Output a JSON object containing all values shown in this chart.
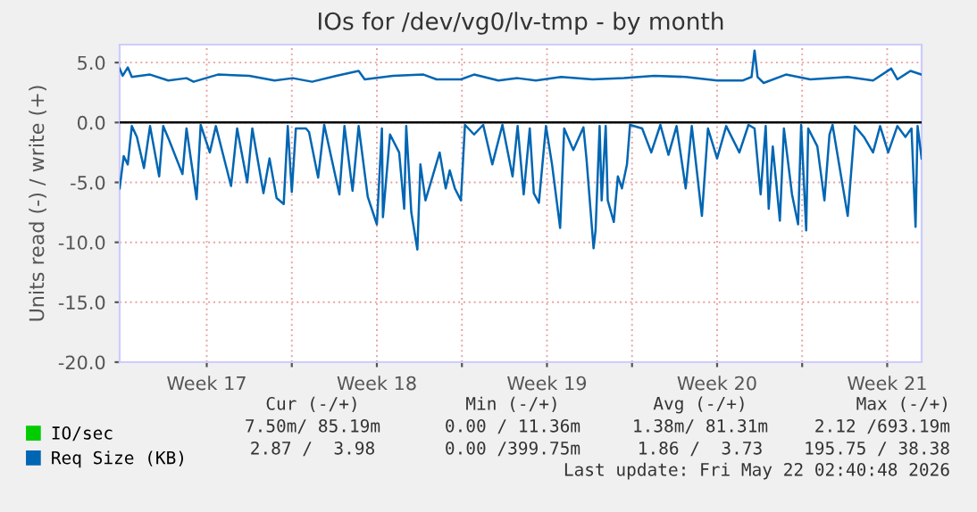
{
  "chart_data": {
    "type": "line",
    "title": "IOs for /dev/vg0/lv-tmp - by month",
    "ylabel": "Units read (-) / write (+)",
    "xlim": [
      "2026-04-19T22:00",
      "2026-05-22T22:00"
    ],
    "xticks": [
      {
        "value": "2026-04-23T12:00",
        "label": "Week 17"
      },
      {
        "value": "2026-04-27T00:00",
        "label": null
      },
      {
        "value": "2026-04-30T12:00",
        "label": "Week 18"
      },
      {
        "value": "2026-05-04T00:00",
        "label": null
      },
      {
        "value": "2026-05-07T12:00",
        "label": "Week 19"
      },
      {
        "value": "2026-05-11T00:00",
        "label": null
      },
      {
        "value": "2026-05-14T12:00",
        "label": "Week 20"
      },
      {
        "value": "2026-05-18T00:00",
        "label": null
      },
      {
        "value": "2026-05-21T12:00",
        "label": "Week 21"
      }
    ],
    "ylim": [
      -20,
      6.5
    ],
    "yticks": [
      {
        "value": -20,
        "label": "-20.0"
      },
      {
        "value": -15,
        "label": "-15.0"
      },
      {
        "value": -10,
        "label": "-10.0"
      },
      {
        "value": -5,
        "label": "-5.0"
      },
      {
        "value": 0,
        "label": "0.0"
      },
      {
        "value": 5,
        "label": "5.0"
      }
    ],
    "grid": true,
    "legend": "bottom left",
    "ref_lines": [
      {
        "axis": "y",
        "value": 0,
        "color": "#000000"
      }
    ],
    "series": [
      {
        "name": "IO/sec",
        "color": "#00cc00"
      },
      {
        "name": "Req Size (KB)",
        "color": "#0066b3",
        "x": [
          "2026-04-19T22:00",
          "2026-04-20T01:00",
          "2026-04-20T06:00",
          "2026-04-20T10:00",
          "2026-04-21T04:00",
          "2026-04-21T22:00",
          "2026-04-22T16:00",
          "2026-04-22T23:00",
          "2026-04-23T23:00",
          "2026-04-25T06:00",
          "2026-04-26T07:00",
          "2026-04-27T01:00",
          "2026-04-27T20:00",
          "2026-04-28T20:00",
          "2026-04-29T18:00",
          "2026-04-30T00:00",
          "2026-05-01T04:00",
          "2026-05-02T10:00",
          "2026-05-02T23:00",
          "2026-05-03T23:00",
          "2026-05-04T12:00",
          "2026-05-05T12:00",
          "2026-05-06T07:00",
          "2026-05-07T01:00",
          "2026-05-08T02:00",
          "2026-05-09T09:00",
          "2026-05-10T16:00",
          "2026-05-11T22:00",
          "2026-05-13T05:00",
          "2026-05-14T12:00",
          "2026-05-15T13:00",
          "2026-05-15T22:00",
          "2026-05-16T01:00",
          "2026-05-16T04:00",
          "2026-05-16T10:00",
          "2026-05-17T08:00",
          "2026-05-18T08:00",
          "2026-05-19T21:00",
          "2026-05-20T22:00",
          "2026-05-21T16:00",
          "2026-05-21T22:00",
          "2026-05-22T11:00",
          "2026-05-22T22:00"
        ],
        "values": [
          4.5,
          3.9,
          4.6,
          3.8,
          4.0,
          3.5,
          3.7,
          3.4,
          4.0,
          3.9,
          3.5,
          3.7,
          3.4,
          3.9,
          4.3,
          3.6,
          3.9,
          4.0,
          3.6,
          3.6,
          4.0,
          3.5,
          3.7,
          3.5,
          3.8,
          3.6,
          3.7,
          3.9,
          3.8,
          3.5,
          3.5,
          3.8,
          6.0,
          3.8,
          3.3,
          4.0,
          3.6,
          3.8,
          3.5,
          4.5,
          3.6,
          4.3,
          4.0
        ]
      },
      {
        "color": "#0066b3",
        "x": [
          "2026-04-19T22:00",
          "2026-04-20T02:00",
          "2026-04-20T06:00",
          "2026-04-20T10:00",
          "2026-04-20T15:00",
          "2026-04-20T22:00",
          "2026-04-21T04:00",
          "2026-04-21T13:00",
          "2026-04-21T17:00",
          "2026-04-21T23:00",
          "2026-04-22T12:00",
          "2026-04-22T16:00",
          "2026-04-23T02:00",
          "2026-04-23T06:00",
          "2026-04-23T15:00",
          "2026-04-23T21:00",
          "2026-04-24T12:00",
          "2026-04-24T18:00",
          "2026-04-25T04:00",
          "2026-04-25T09:00",
          "2026-04-25T20:00",
          "2026-04-26T02:00",
          "2026-04-26T09:00",
          "2026-04-26T16:00",
          "2026-04-26T20:00",
          "2026-04-27T00:00",
          "2026-04-27T04:00",
          "2026-04-27T14:00",
          "2026-04-27T17:00",
          "2026-04-28T02:00",
          "2026-04-28T08:00",
          "2026-04-28T23:00",
          "2026-04-29T04:00",
          "2026-04-29T12:00",
          "2026-04-29T18:00",
          "2026-04-30T03:00",
          "2026-04-30T12:00",
          "2026-04-30T17:00",
          "2026-04-30T18:00",
          "2026-05-01T01:00",
          "2026-05-01T10:00",
          "2026-05-01T15:00",
          "2026-05-01T17:00",
          "2026-05-01T22:00",
          "2026-05-02T04:00",
          "2026-05-02T07:00",
          "2026-05-02T12:00",
          "2026-05-02T19:00",
          "2026-05-03T02:00",
          "2026-05-03T08:00",
          "2026-05-03T12:00",
          "2026-05-03T17:00",
          "2026-05-03T23:00",
          "2026-05-04T03:00",
          "2026-05-04T12:00",
          "2026-05-04T21:00",
          "2026-05-05T06:00",
          "2026-05-05T16:00",
          "2026-05-06T02:00",
          "2026-05-06T07:00",
          "2026-05-06T13:00",
          "2026-05-06T19:00",
          "2026-05-06T23:00",
          "2026-05-07T04:00",
          "2026-05-07T11:00",
          "2026-05-07T17:00",
          "2026-05-08T01:00",
          "2026-05-08T05:00",
          "2026-05-08T14:00",
          "2026-05-09T00:00",
          "2026-05-09T03:00",
          "2026-05-09T10:00",
          "2026-05-09T12:00",
          "2026-05-09T16:00",
          "2026-05-09T18:00",
          "2026-05-09T22:00",
          "2026-05-10T00:00",
          "2026-05-10T06:00",
          "2026-05-10T10:00",
          "2026-05-10T14:00",
          "2026-05-10T19:00",
          "2026-05-10T22:00",
          "2026-05-11T10:00",
          "2026-05-11T19:00",
          "2026-05-12T04:00",
          "2026-05-12T12:00",
          "2026-05-12T20:00",
          "2026-05-13T05:00",
          "2026-05-13T11:00",
          "2026-05-13T21:00",
          "2026-05-14T03:00",
          "2026-05-14T12:00",
          "2026-05-14T21:00",
          "2026-05-15T10:00",
          "2026-05-15T19:00",
          "2026-05-16T01:00",
          "2026-05-16T07:00",
          "2026-05-16T12:00",
          "2026-05-16T15:00",
          "2026-05-16T19:00",
          "2026-05-17T02:00",
          "2026-05-17T06:00",
          "2026-05-17T14:00",
          "2026-05-17T20:00",
          "2026-05-17T23:00",
          "2026-05-18T04:00",
          "2026-05-18T06:00",
          "2026-05-18T15:00",
          "2026-05-18T22:00",
          "2026-05-19T03:00",
          "2026-05-19T06:00",
          "2026-05-19T21:00",
          "2026-05-20T04:00",
          "2026-05-20T13:00",
          "2026-05-20T22:00",
          "2026-05-21T05:00",
          "2026-05-21T13:00",
          "2026-05-21T22:00",
          "2026-05-22T06:00",
          "2026-05-22T12:00",
          "2026-05-22T16:00",
          "2026-05-22T18:00",
          "2026-05-22T22:00"
        ],
        "values": [
          -5.5,
          -2.8,
          -3.5,
          -0.3,
          -1.2,
          -3.8,
          -0.3,
          -4.5,
          -0.3,
          -1.5,
          -4.3,
          -0.5,
          -6.4,
          -0.2,
          -2.5,
          -0.3,
          -5.3,
          -0.5,
          -5.0,
          -0.5,
          -5.9,
          -3.0,
          -6.3,
          -6.8,
          -0.3,
          -5.8,
          -0.5,
          -0.5,
          -0.8,
          -4.6,
          -0.2,
          -6.0,
          -0.3,
          -5.7,
          -0.3,
          -6.2,
          -8.5,
          -0.5,
          -7.9,
          -1.0,
          -2.5,
          -7.2,
          -0.3,
          -7.5,
          -10.6,
          -3.5,
          -6.5,
          -4.5,
          -2.5,
          -5.5,
          -4.0,
          -5.5,
          -6.5,
          -0.2,
          -1.0,
          -0.2,
          -3.5,
          -0.2,
          -4.5,
          -0.3,
          -6.0,
          -0.5,
          -5.9,
          -6.7,
          -0.3,
          -3.5,
          -8.8,
          -0.5,
          -2.3,
          -0.4,
          -3.0,
          -10.5,
          -9.0,
          -0.3,
          -6.5,
          -0.3,
          -6.5,
          -8.3,
          -4.5,
          -5.5,
          -3.5,
          -0.2,
          -0.5,
          -2.5,
          -0.2,
          -2.7,
          -0.3,
          -5.5,
          -0.3,
          -7.8,
          -0.5,
          -3.0,
          -0.3,
          -2.5,
          -0.2,
          -0.5,
          -6.0,
          -0.3,
          -7.2,
          -2.0,
          -8.2,
          -0.5,
          -6.0,
          -8.5,
          -0.2,
          -9.0,
          -0.5,
          -2.0,
          -6.5,
          -1.0,
          -0.2,
          -7.8,
          -0.3,
          -1.2,
          -2.5,
          -0.3,
          -2.5,
          -0.3,
          -1.2,
          -0.5,
          -8.7,
          -0.3,
          -3.0
        ]
      }
    ],
    "annotations": [
      "Cur (-/+)",
      "Min (-/+)",
      "Avg (-/+)",
      "Max (-/+)",
      "7.50m/ 85.19m",
      "0.00 / 11.36m",
      "1.38m/ 81.31m",
      "2.12 /693.19m",
      "2.87 /  3.98",
      "0.00 /399.75m",
      "1.86 /  3.73",
      "195.75 / 38.38",
      "Last update: Fri May 22 02:40:48 2026"
    ]
  }
}
